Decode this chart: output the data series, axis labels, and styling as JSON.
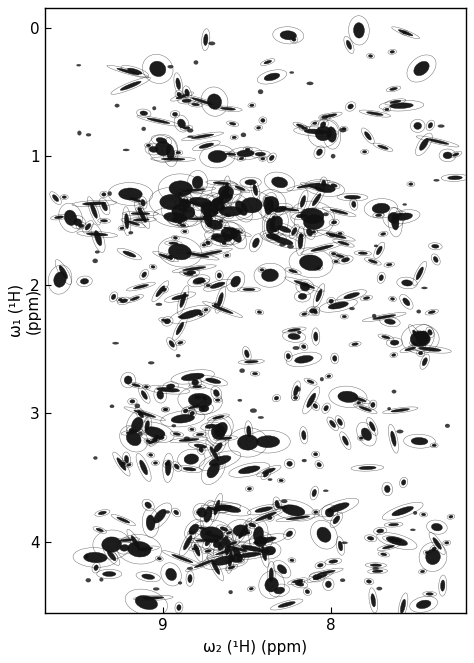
{
  "xlabel": "ω₂ (¹H) (ppm)",
  "ylabel": "ω₁ (¹H)\n(ppm)",
  "x_min": 7.2,
  "x_max": 9.7,
  "y_min": -0.15,
  "y_max": 4.55,
  "x_ticks": [
    9,
    8
  ],
  "y_ticks": [
    0,
    1,
    2,
    3,
    4
  ],
  "peak_color": "#111111",
  "seed": 12345
}
